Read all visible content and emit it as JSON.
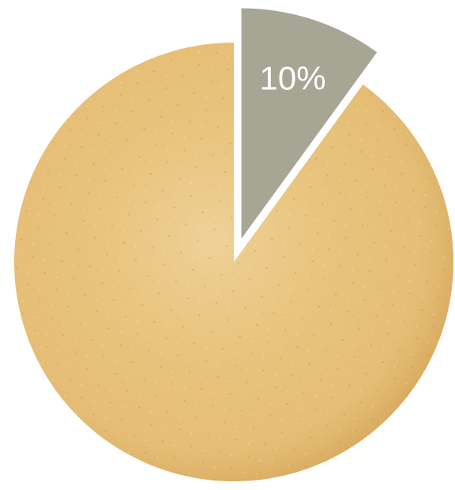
{
  "chart_data": {
    "type": "pie",
    "values": [
      10,
      90
    ],
    "value_labels": [
      "10%",
      null
    ],
    "colors": [
      "#a7a695",
      "#e6be76"
    ],
    "exploded": [
      true,
      false
    ],
    "start_angle": "top",
    "direction": "clockwise"
  }
}
